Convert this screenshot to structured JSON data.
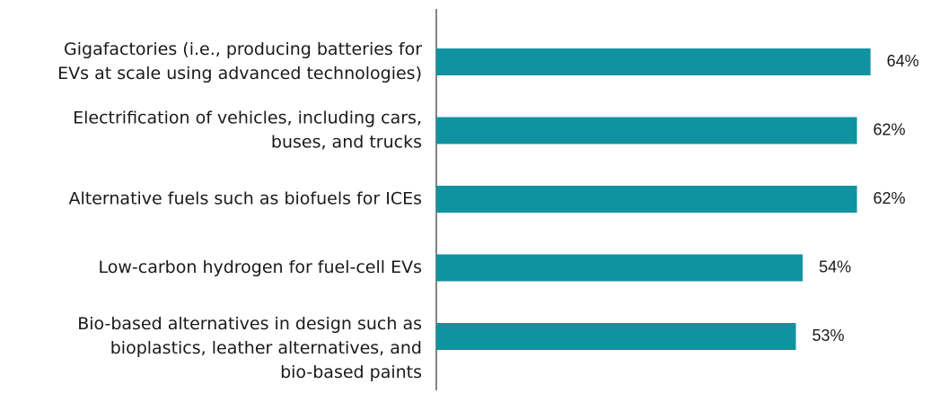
{
  "chart_data": {
    "type": "barh",
    "categories": [
      [
        "Gigafactories (i.e., producing batteries for",
        "EVs at scale using advanced technologies)"
      ],
      [
        "Electrification of vehicles, including cars,",
        "buses, and trucks"
      ],
      [
        "Alternative fuels such as biofuels for ICEs"
      ],
      [
        "Low-carbon hydrogen for fuel-cell EVs"
      ],
      [
        "Bio-based alternatives in design such as",
        "bioplastics, leather alternatives, and",
        "bio-based paints"
      ]
    ],
    "values": [
      64,
      62,
      62,
      54,
      53
    ],
    "value_labels": [
      "64%",
      "62%",
      "62%",
      "54%",
      "53%"
    ],
    "color": "#1192a0",
    "xlim": [
      0,
      70
    ]
  }
}
